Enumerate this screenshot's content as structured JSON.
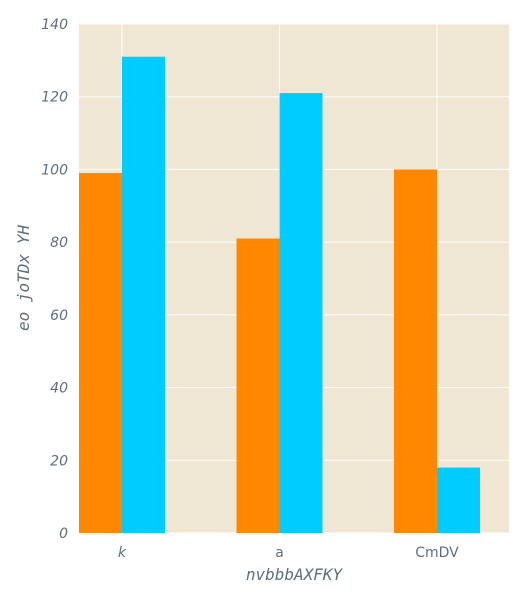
{
  "chart_data": {
    "type": "bar",
    "title": "",
    "xlabel": "nvbbbAXFKY",
    "ylabel": "eo joTDx YH",
    "categories": [
      "k",
      "a",
      "CmDV"
    ],
    "series": [
      {
        "values": [
          99,
          81,
          100
        ],
        "color": "#ff8800"
      },
      {
        "values": [
          131,
          121,
          18
        ],
        "color": "#00ccff"
      }
    ],
    "ylim": [
      0,
      140
    ],
    "yticks": [
      0,
      20,
      40,
      60,
      80,
      100,
      120,
      140
    ],
    "grid": true,
    "legend": "none",
    "colors": {
      "plot_background": "#efe7d3",
      "grid": "#ffffff",
      "text": "#5f6f7c"
    }
  }
}
